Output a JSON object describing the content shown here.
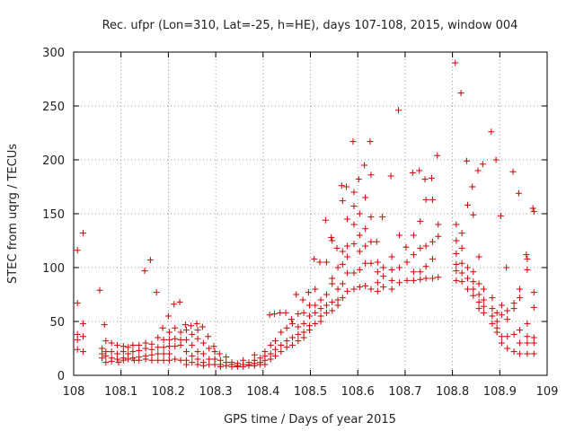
{
  "chart_data": {
    "type": "scatter",
    "title": "Rec. ufpr (Lon=310, Lat=-25, h=HE), days 107-108, 2015, window 004",
    "xlabel": "GPS time / Days of year 2015",
    "ylabel": "STEC from uqrg / TECUs",
    "xlim": [
      108,
      109
    ],
    "ylim": [
      0,
      300
    ],
    "x_ticks": [
      "108",
      "108.1",
      "108.2",
      "108.3",
      "108.4",
      "108.5",
      "108.6",
      "108.7",
      "108.8",
      "108.9",
      "109"
    ],
    "y_ticks": [
      "0",
      "50",
      "100",
      "150",
      "200",
      "250",
      "300"
    ],
    "grid": "dotted",
    "legend": "none",
    "marker": "+",
    "color": "#cc0000",
    "points": [
      [
        108.008,
        116
      ],
      [
        108.008,
        67
      ],
      [
        108.008,
        38
      ],
      [
        108.008,
        33
      ],
      [
        108.008,
        24
      ],
      [
        108.02,
        132
      ],
      [
        108.02,
        48
      ],
      [
        108.02,
        36
      ],
      [
        108.02,
        22
      ],
      [
        108.055,
        79
      ],
      [
        108.06,
        25
      ],
      [
        108.06,
        20
      ],
      [
        108.06,
        16
      ],
      [
        108.065,
        47
      ],
      [
        108.068,
        32
      ],
      [
        108.068,
        22
      ],
      [
        108.068,
        18
      ],
      [
        108.068,
        12
      ],
      [
        108.08,
        30
      ],
      [
        108.08,
        22
      ],
      [
        108.08,
        16
      ],
      [
        108.08,
        13
      ],
      [
        108.092,
        28
      ],
      [
        108.092,
        20
      ],
      [
        108.092,
        15
      ],
      [
        108.095,
        12
      ],
      [
        108.105,
        27
      ],
      [
        108.105,
        22
      ],
      [
        108.105,
        16
      ],
      [
        108.105,
        14
      ],
      [
        108.115,
        26
      ],
      [
        108.115,
        20
      ],
      [
        108.115,
        15
      ],
      [
        108.125,
        28
      ],
      [
        108.125,
        22
      ],
      [
        108.125,
        16
      ],
      [
        108.128,
        14
      ],
      [
        108.138,
        28
      ],
      [
        108.138,
        23
      ],
      [
        108.138,
        17
      ],
      [
        108.138,
        14
      ],
      [
        108.15,
        97
      ],
      [
        108.152,
        30
      ],
      [
        108.152,
        25
      ],
      [
        108.152,
        18
      ],
      [
        108.152,
        15
      ],
      [
        108.162,
        107
      ],
      [
        108.165,
        29
      ],
      [
        108.165,
        24
      ],
      [
        108.165,
        19
      ],
      [
        108.165,
        14
      ],
      [
        108.175,
        77
      ],
      [
        108.178,
        35
      ],
      [
        108.178,
        26
      ],
      [
        108.178,
        20
      ],
      [
        108.178,
        14
      ],
      [
        108.188,
        44
      ],
      [
        108.19,
        33
      ],
      [
        108.19,
        26
      ],
      [
        108.19,
        20
      ],
      [
        108.19,
        14
      ],
      [
        108.2,
        55
      ],
      [
        108.202,
        40
      ],
      [
        108.202,
        33
      ],
      [
        108.202,
        27
      ],
      [
        108.202,
        20
      ],
      [
        108.202,
        14
      ],
      [
        108.212,
        66
      ],
      [
        108.214,
        44
      ],
      [
        108.214,
        34
      ],
      [
        108.214,
        27
      ],
      [
        108.214,
        15
      ],
      [
        108.224,
        68
      ],
      [
        108.226,
        40
      ],
      [
        108.226,
        33
      ],
      [
        108.226,
        28
      ],
      [
        108.226,
        14
      ],
      [
        108.236,
        47
      ],
      [
        108.238,
        42
      ],
      [
        108.238,
        33
      ],
      [
        108.238,
        22
      ],
      [
        108.238,
        14
      ],
      [
        108.238,
        10
      ],
      [
        108.248,
        46
      ],
      [
        108.25,
        38
      ],
      [
        108.25,
        28
      ],
      [
        108.25,
        18
      ],
      [
        108.25,
        12
      ],
      [
        108.26,
        48
      ],
      [
        108.262,
        42
      ],
      [
        108.262,
        34
      ],
      [
        108.262,
        22
      ],
      [
        108.262,
        15
      ],
      [
        108.262,
        10
      ],
      [
        108.272,
        45
      ],
      [
        108.274,
        30
      ],
      [
        108.274,
        20
      ],
      [
        108.274,
        12
      ],
      [
        108.274,
        9
      ],
      [
        108.284,
        36
      ],
      [
        108.286,
        25
      ],
      [
        108.286,
        15
      ],
      [
        108.286,
        10
      ],
      [
        108.296,
        27
      ],
      [
        108.298,
        22
      ],
      [
        108.298,
        15
      ],
      [
        108.298,
        10
      ],
      [
        108.308,
        20
      ],
      [
        108.31,
        14
      ],
      [
        108.31,
        10
      ],
      [
        108.31,
        8
      ],
      [
        108.322,
        17
      ],
      [
        108.322,
        12
      ],
      [
        108.322,
        9
      ],
      [
        108.334,
        12
      ],
      [
        108.334,
        10
      ],
      [
        108.334,
        8
      ],
      [
        108.346,
        11
      ],
      [
        108.346,
        9
      ],
      [
        108.346,
        8
      ],
      [
        108.358,
        14
      ],
      [
        108.358,
        10
      ],
      [
        108.358,
        8
      ],
      [
        108.37,
        12
      ],
      [
        108.37,
        10
      ],
      [
        108.37,
        9
      ],
      [
        108.382,
        19
      ],
      [
        108.382,
        14
      ],
      [
        108.382,
        11
      ],
      [
        108.382,
        9
      ],
      [
        108.394,
        16
      ],
      [
        108.394,
        12
      ],
      [
        108.394,
        10
      ],
      [
        108.404,
        22
      ],
      [
        108.404,
        18
      ],
      [
        108.404,
        14
      ],
      [
        108.404,
        10
      ],
      [
        108.414,
        56
      ],
      [
        108.416,
        28
      ],
      [
        108.416,
        20
      ],
      [
        108.416,
        15
      ],
      [
        108.424,
        57
      ],
      [
        108.426,
        32
      ],
      [
        108.426,
        24
      ],
      [
        108.426,
        18
      ],
      [
        108.436,
        58
      ],
      [
        108.438,
        40
      ],
      [
        108.438,
        28
      ],
      [
        108.438,
        22
      ],
      [
        108.448,
        58
      ],
      [
        108.45,
        44
      ],
      [
        108.45,
        32
      ],
      [
        108.45,
        26
      ],
      [
        108.46,
        52
      ],
      [
        108.462,
        48
      ],
      [
        108.462,
        35
      ],
      [
        108.462,
        28
      ],
      [
        108.47,
        75
      ],
      [
        108.474,
        57
      ],
      [
        108.474,
        45
      ],
      [
        108.474,
        38
      ],
      [
        108.474,
        32
      ],
      [
        108.484,
        70
      ],
      [
        108.486,
        58
      ],
      [
        108.486,
        48
      ],
      [
        108.486,
        40
      ],
      [
        108.486,
        35
      ],
      [
        108.496,
        77
      ],
      [
        108.498,
        65
      ],
      [
        108.498,
        55
      ],
      [
        108.498,
        46
      ],
      [
        108.498,
        42
      ],
      [
        108.508,
        108
      ],
      [
        108.51,
        80
      ],
      [
        108.51,
        65
      ],
      [
        108.51,
        58
      ],
      [
        108.51,
        48
      ],
      [
        108.52,
        105
      ],
      [
        108.522,
        70
      ],
      [
        108.522,
        62
      ],
      [
        108.522,
        55
      ],
      [
        108.522,
        50
      ],
      [
        108.532,
        144
      ],
      [
        108.534,
        105
      ],
      [
        108.534,
        75
      ],
      [
        108.534,
        65
      ],
      [
        108.534,
        58
      ],
      [
        108.544,
        128
      ],
      [
        108.546,
        125
      ],
      [
        108.546,
        90
      ],
      [
        108.546,
        85
      ],
      [
        108.546,
        68
      ],
      [
        108.546,
        60
      ],
      [
        108.556,
        118
      ],
      [
        108.558,
        100
      ],
      [
        108.558,
        80
      ],
      [
        108.558,
        70
      ],
      [
        108.558,
        65
      ],
      [
        108.566,
        176
      ],
      [
        108.568,
        162
      ],
      [
        108.568,
        115
      ],
      [
        108.568,
        103
      ],
      [
        108.568,
        85
      ],
      [
        108.568,
        72
      ],
      [
        108.576,
        175
      ],
      [
        108.578,
        145
      ],
      [
        108.578,
        120
      ],
      [
        108.578,
        110
      ],
      [
        108.578,
        95
      ],
      [
        108.578,
        78
      ],
      [
        108.59,
        217
      ],
      [
        108.592,
        170
      ],
      [
        108.592,
        157
      ],
      [
        108.592,
        140
      ],
      [
        108.592,
        122
      ],
      [
        108.592,
        95
      ],
      [
        108.592,
        80
      ],
      [
        108.602,
        182
      ],
      [
        108.604,
        150
      ],
      [
        108.604,
        130
      ],
      [
        108.604,
        115
      ],
      [
        108.604,
        98
      ],
      [
        108.604,
        82
      ],
      [
        108.614,
        195
      ],
      [
        108.616,
        165
      ],
      [
        108.616,
        136
      ],
      [
        108.616,
        120
      ],
      [
        108.616,
        104
      ],
      [
        108.616,
        83
      ],
      [
        108.626,
        217
      ],
      [
        108.628,
        186
      ],
      [
        108.628,
        147
      ],
      [
        108.628,
        124
      ],
      [
        108.628,
        104
      ],
      [
        108.628,
        80
      ],
      [
        108.64,
        124
      ],
      [
        108.642,
        105
      ],
      [
        108.642,
        96
      ],
      [
        108.642,
        86
      ],
      [
        108.642,
        78
      ],
      [
        108.652,
        147
      ],
      [
        108.654,
        100
      ],
      [
        108.654,
        92
      ],
      [
        108.654,
        82
      ],
      [
        108.67,
        185
      ],
      [
        108.672,
        110
      ],
      [
        108.672,
        98
      ],
      [
        108.672,
        88
      ],
      [
        108.672,
        80
      ],
      [
        108.686,
        246
      ],
      [
        108.688,
        130
      ],
      [
        108.688,
        100
      ],
      [
        108.688,
        86
      ],
      [
        108.702,
        119
      ],
      [
        108.704,
        105
      ],
      [
        108.704,
        88
      ],
      [
        108.716,
        188
      ],
      [
        108.718,
        130
      ],
      [
        108.718,
        112
      ],
      [
        108.718,
        96
      ],
      [
        108.718,
        88
      ],
      [
        108.73,
        190
      ],
      [
        108.732,
        143
      ],
      [
        108.732,
        118
      ],
      [
        108.732,
        96
      ],
      [
        108.732,
        89
      ],
      [
        108.742,
        182
      ],
      [
        108.744,
        163
      ],
      [
        108.744,
        120
      ],
      [
        108.744,
        101
      ],
      [
        108.744,
        90
      ],
      [
        108.756,
        183
      ],
      [
        108.758,
        163
      ],
      [
        108.758,
        124
      ],
      [
        108.758,
        108
      ],
      [
        108.758,
        90
      ],
      [
        108.768,
        204
      ],
      [
        108.77,
        140
      ],
      [
        108.77,
        129
      ],
      [
        108.77,
        91
      ],
      [
        108.806,
        290
      ],
      [
        108.808,
        140
      ],
      [
        108.808,
        125
      ],
      [
        108.808,
        113
      ],
      [
        108.808,
        103
      ],
      [
        108.808,
        97
      ],
      [
        108.808,
        88
      ],
      [
        108.818,
        262
      ],
      [
        108.82,
        132
      ],
      [
        108.82,
        118
      ],
      [
        108.82,
        104
      ],
      [
        108.82,
        95
      ],
      [
        108.82,
        87
      ],
      [
        108.83,
        199
      ],
      [
        108.832,
        158
      ],
      [
        108.832,
        100
      ],
      [
        108.832,
        90
      ],
      [
        108.832,
        80
      ],
      [
        108.842,
        175
      ],
      [
        108.844,
        149
      ],
      [
        108.844,
        96
      ],
      [
        108.844,
        87
      ],
      [
        108.844,
        80
      ],
      [
        108.844,
        74
      ],
      [
        108.854,
        190
      ],
      [
        108.856,
        110
      ],
      [
        108.856,
        85
      ],
      [
        108.856,
        75
      ],
      [
        108.856,
        68
      ],
      [
        108.856,
        62
      ],
      [
        108.864,
        196
      ],
      [
        108.866,
        80
      ],
      [
        108.866,
        70
      ],
      [
        108.866,
        64
      ],
      [
        108.866,
        58
      ],
      [
        108.882,
        226
      ],
      [
        108.884,
        72
      ],
      [
        108.884,
        62
      ],
      [
        108.884,
        55
      ],
      [
        108.884,
        48
      ],
      [
        108.892,
        200
      ],
      [
        108.894,
        58
      ],
      [
        108.894,
        50
      ],
      [
        108.894,
        44
      ],
      [
        108.894,
        40
      ],
      [
        108.902,
        148
      ],
      [
        108.904,
        65
      ],
      [
        108.904,
        56
      ],
      [
        108.904,
        36
      ],
      [
        108.904,
        30
      ],
      [
        108.914,
        100
      ],
      [
        108.916,
        60
      ],
      [
        108.916,
        52
      ],
      [
        108.916,
        36
      ],
      [
        108.916,
        25
      ],
      [
        108.928,
        189
      ],
      [
        108.93,
        67
      ],
      [
        108.93,
        62
      ],
      [
        108.93,
        38
      ],
      [
        108.93,
        22
      ],
      [
        108.94,
        169
      ],
      [
        108.942,
        80
      ],
      [
        108.942,
        72
      ],
      [
        108.942,
        42
      ],
      [
        108.942,
        30
      ],
      [
        108.942,
        20
      ],
      [
        108.956,
        112
      ],
      [
        108.958,
        108
      ],
      [
        108.958,
        98
      ],
      [
        108.958,
        48
      ],
      [
        108.958,
        36
      ],
      [
        108.958,
        30
      ],
      [
        108.958,
        20
      ],
      [
        108.97,
        155
      ],
      [
        108.972,
        152
      ],
      [
        108.972,
        77
      ],
      [
        108.972,
        63
      ],
      [
        108.972,
        35
      ],
      [
        108.972,
        30
      ],
      [
        108.972,
        20
      ]
    ]
  }
}
